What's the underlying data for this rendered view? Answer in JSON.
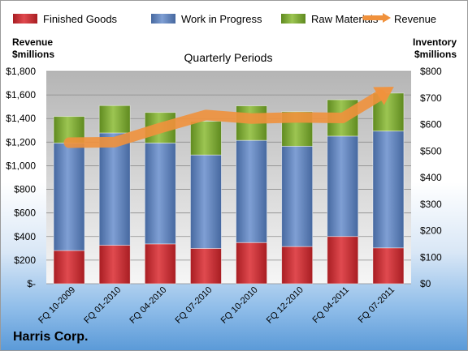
{
  "chart_data": {
    "type": "bar",
    "stacked": true,
    "title": "Quarterly Periods",
    "company": "Harris Corp.",
    "y_left_label": [
      "Revenue",
      "$millions"
    ],
    "y_right_label": [
      "Inventory",
      "$millions"
    ],
    "categories": [
      "FQ 10-2009",
      "FQ 01-2010",
      "FQ 04-2010",
      "FQ 07-2010",
      "FQ 10-2010",
      "FQ 12-2010",
      "FQ 04-2011",
      "FQ 07-2011"
    ],
    "y_left_ticks": [
      "$-",
      "$200",
      "$400",
      "$600",
      "$800",
      "$1,000",
      "$1,200",
      "$1,400",
      "$1,600",
      "$1,800"
    ],
    "y_right_ticks": [
      "$0",
      "$100",
      "$200",
      "$300",
      "$400",
      "$500",
      "$600",
      "$700",
      "$800"
    ],
    "ylim_left": [
      0,
      1800
    ],
    "ylim_right": [
      0,
      800
    ],
    "series": [
      {
        "name": "Finished Goods",
        "axis": "right",
        "color": "#c0282d",
        "values": [
          125,
          145,
          150,
          133,
          155,
          140,
          178,
          135
        ]
      },
      {
        "name": "Work in Progress",
        "axis": "right",
        "color": "#5a7fc0",
        "values": [
          405,
          423,
          380,
          352,
          385,
          378,
          378,
          440
        ]
      },
      {
        "name": "Raw Materials",
        "axis": "right",
        "color": "#78a32f",
        "values": [
          100,
          103,
          115,
          127,
          130,
          130,
          137,
          143
        ]
      },
      {
        "name": "Revenue",
        "axis": "left",
        "type": "line",
        "color": "#f0913c",
        "values": [
          1195,
          1200,
          1320,
          1430,
          1400,
          1410,
          1405,
          1640
        ]
      }
    ],
    "legend_position": "top",
    "grid": true
  }
}
